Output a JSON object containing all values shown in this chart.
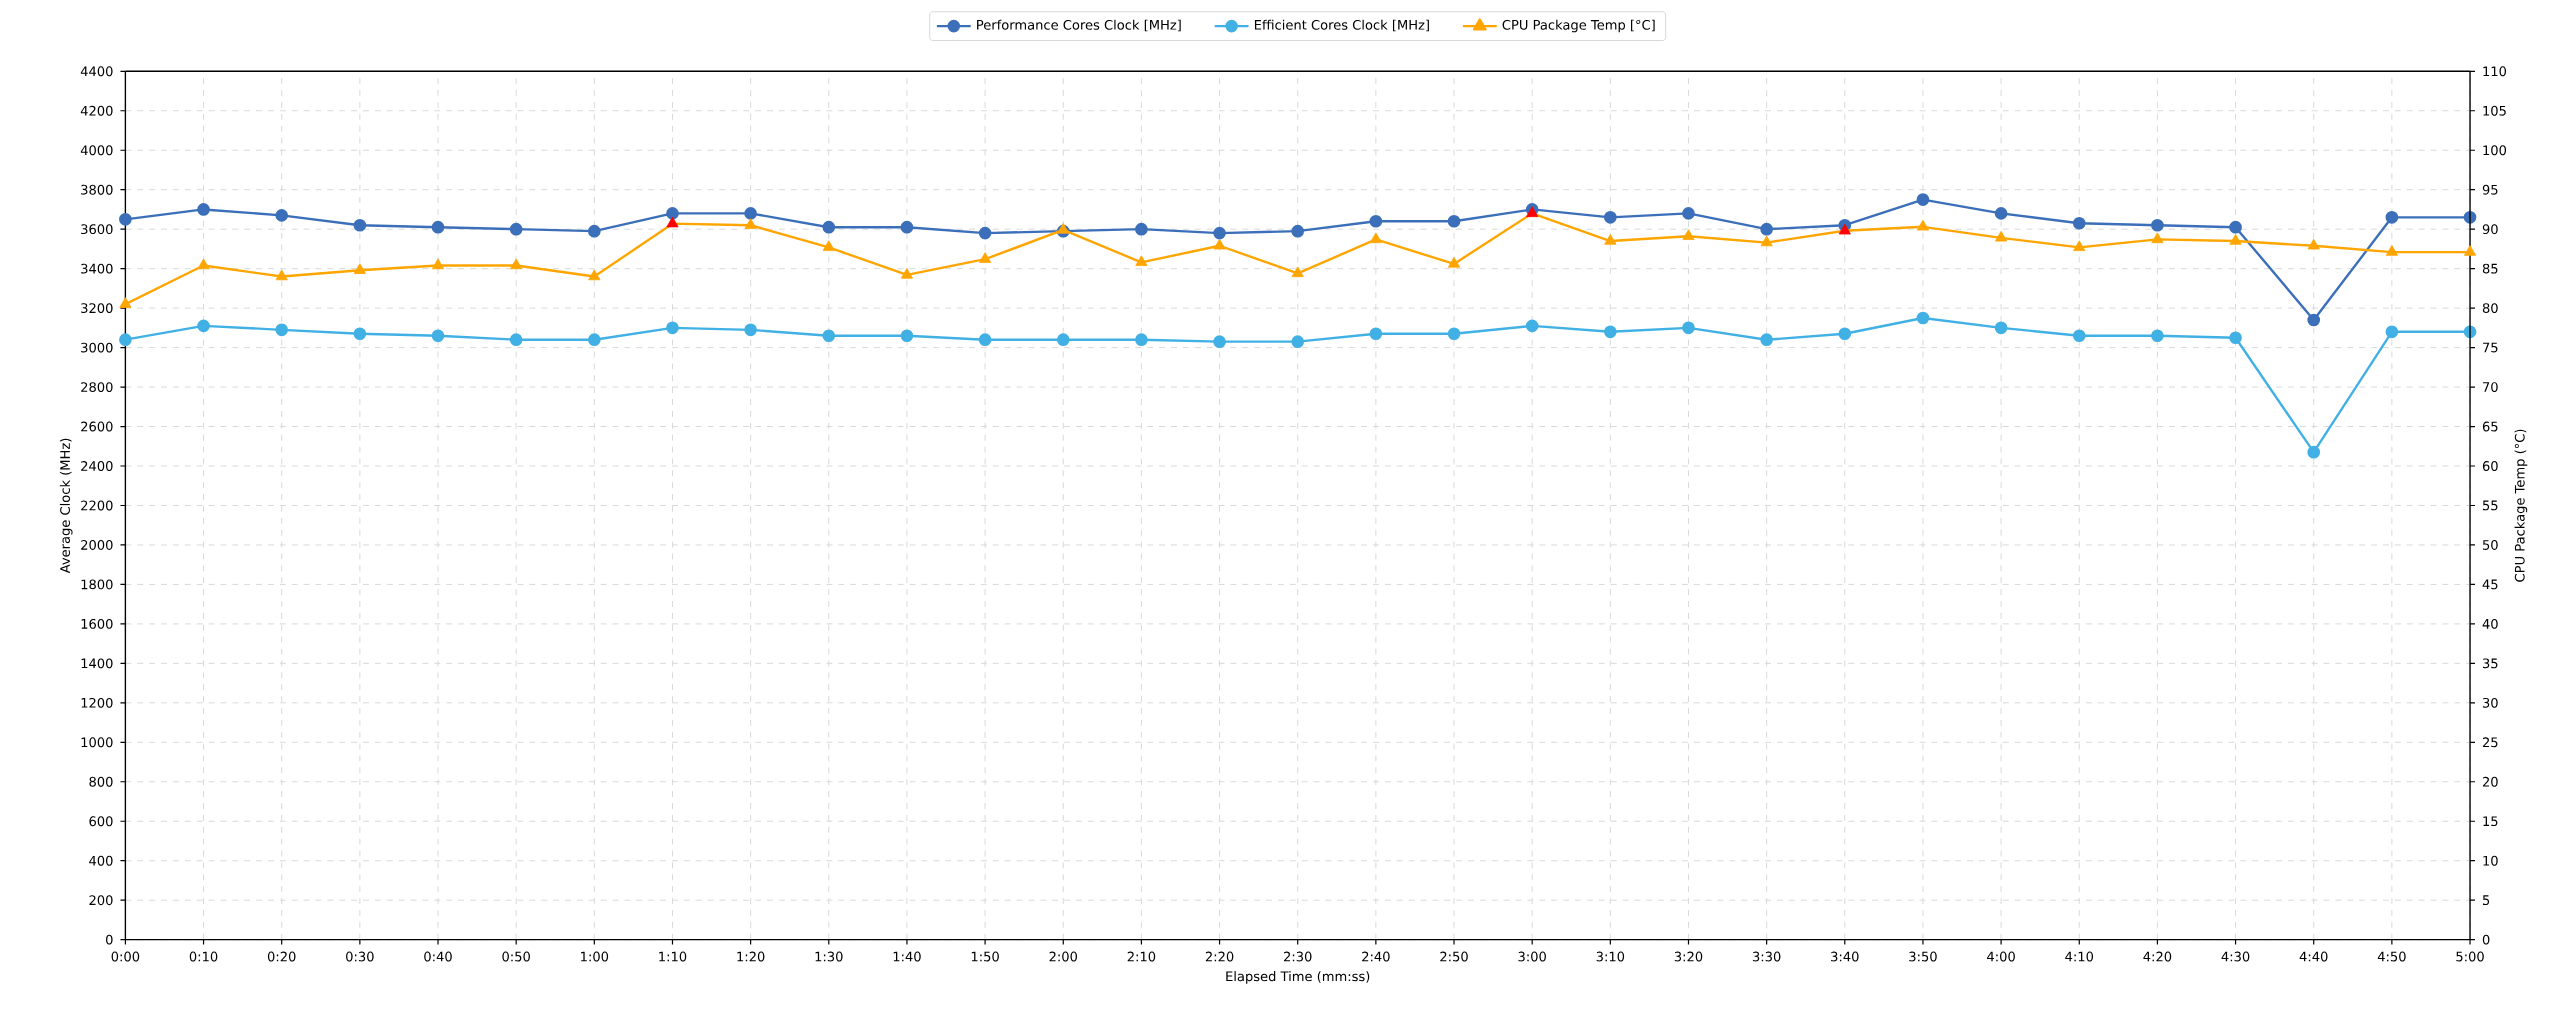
{
  "chart_data": {
    "type": "line",
    "xlabel": "Elapsed Time (mm:ss)",
    "ylabel": "Average Clock (MHz)",
    "y2label": "CPU Package Temp (°C)",
    "categories": [
      "0:00",
      "0:10",
      "0:20",
      "0:30",
      "0:40",
      "0:50",
      "1:00",
      "1:10",
      "1:20",
      "1:30",
      "1:40",
      "1:50",
      "2:00",
      "2:10",
      "2:20",
      "2:30",
      "2:40",
      "2:50",
      "3:00",
      "3:10",
      "3:20",
      "3:30",
      "3:40",
      "3:50",
      "4:00",
      "4:10",
      "4:20",
      "4:30",
      "4:40",
      "4:50",
      "5:00"
    ],
    "series": [
      {
        "name": "Performance Cores Clock [MHz]",
        "color": "#3c6fb9",
        "marker": "circle",
        "values": [
          3650,
          3700,
          3670,
          3620,
          3610,
          3600,
          3590,
          3680,
          3680,
          3610,
          3610,
          3580,
          3590,
          3600,
          3580,
          3590,
          3640,
          3640,
          3700,
          3660,
          3680,
          3600,
          3620,
          3750,
          3680,
          3630,
          3620,
          3610,
          3140,
          3660,
          3660
        ]
      },
      {
        "name": "Efficient Cores Clock [MHz]",
        "color": "#41b0e4",
        "marker": "circle",
        "values": [
          3040,
          3110,
          3090,
          3070,
          3060,
          3040,
          3040,
          3100,
          3090,
          3060,
          3060,
          3040,
          3040,
          3040,
          3030,
          3030,
          3070,
          3070,
          3110,
          3080,
          3100,
          3040,
          3070,
          3150,
          3100,
          3060,
          3060,
          3050,
          2470,
          3080,
          3080
        ]
      },
      {
        "name": "CPU Package Temp [°C]",
        "color": "#ffa500",
        "marker": "triangle",
        "axis": "y2",
        "values": [
          80.5,
          85.4,
          84.0,
          84.8,
          85.4,
          85.4,
          84.0,
          90.7,
          90.5,
          87.7,
          84.2,
          86.2,
          89.9,
          85.8,
          87.9,
          84.4,
          88.7,
          85.6,
          92.0,
          88.5,
          89.1,
          88.3,
          89.8,
          90.3,
          88.9,
          87.7,
          88.7,
          88.5,
          87.9,
          87.1,
          87.1
        ],
        "colors": [
          "#ffa500",
          "#ffa500",
          "#ffa500",
          "#ffa500",
          "#ffa500",
          "#ffa500",
          "#ffa500",
          "#ff0000",
          "#ffa500",
          "#ffa500",
          "#ffa500",
          "#ffa500",
          "#ffa500",
          "#ffa500",
          "#ffa500",
          "#ffa500",
          "#ffa500",
          "#ffa500",
          "#ff0000",
          "#ffa500",
          "#ffa500",
          "#ffa500",
          "#ff0000",
          "#ffa500",
          "#ffa500",
          "#ffa500",
          "#ffa500",
          "#ffa500",
          "#ffa500",
          "#ffa500",
          "#ffa500"
        ]
      }
    ],
    "ylim": [
      0,
      4400
    ],
    "yticks": [
      0,
      200,
      400,
      600,
      800,
      1000,
      1200,
      1400,
      1600,
      1800,
      2000,
      2200,
      2400,
      2600,
      2800,
      3000,
      3200,
      3400,
      3600,
      3800,
      4000,
      4200,
      4400
    ],
    "y2lim": [
      0,
      110
    ],
    "y2ticks": [
      0,
      5,
      10,
      15,
      20,
      25,
      30,
      35,
      40,
      45,
      50,
      55,
      60,
      65,
      70,
      75,
      80,
      85,
      90,
      95,
      100,
      105,
      110
    ],
    "grid": true,
    "legend": "top",
    "line_style": "solid"
  }
}
